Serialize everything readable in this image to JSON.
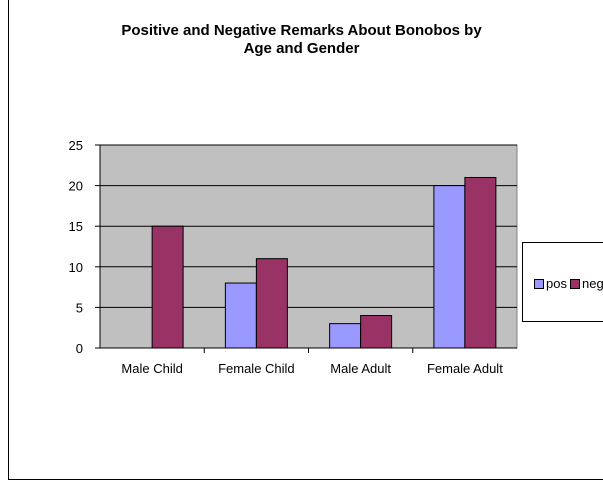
{
  "chart_data": {
    "type": "bar",
    "title_lines": [
      "Positive and Negative Remarks About Bonobos by",
      "Age and Gender"
    ],
    "categories": [
      "Male Child",
      "Female Child",
      "Male Adult",
      "Female Adult"
    ],
    "series": [
      {
        "name": "pos",
        "values": [
          0,
          8,
          3,
          20
        ],
        "color": "#9999ff"
      },
      {
        "name": "neg",
        "values": [
          15,
          11,
          4,
          21
        ],
        "color": "#993366"
      }
    ],
    "ylim": [
      0,
      25
    ],
    "yticks": [
      "0",
      "5",
      "10",
      "15",
      "20",
      "25"
    ],
    "grid": true,
    "plot_background": "#c0c0c0",
    "legend_position": "right"
  }
}
